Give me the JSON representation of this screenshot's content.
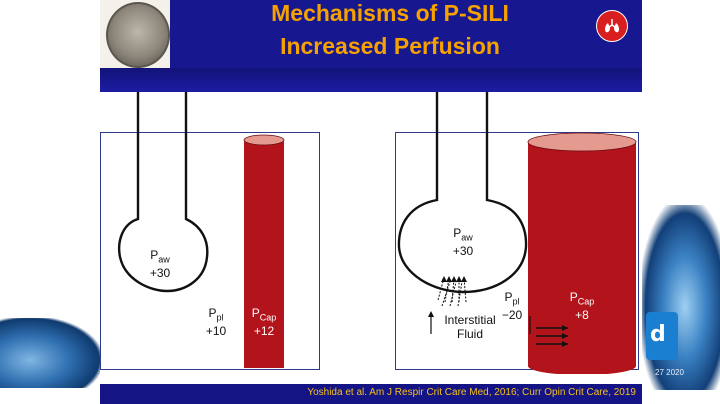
{
  "slide": {
    "title_line1": "Mechanisms of P-SILI",
    "title_line2": "Increased Perfusion",
    "citation": "Yoshida et al. Am J Respir Crit Care Med, 2016; Curr Opin Crit Care, 2019"
  },
  "left_panel": {
    "paw_main": "P",
    "paw_sub": "aw",
    "paw_value": "+30",
    "ppl_main": "P",
    "ppl_sub": "pl",
    "ppl_value": "+10",
    "pcap_main": "P",
    "pcap_sub": "Cap",
    "pcap_value": "+12"
  },
  "right_panel": {
    "paw_main": "P",
    "paw_sub": "aw",
    "paw_value": "+30",
    "ppl_main": "P",
    "ppl_sub": "pl",
    "ppl_value": "−20",
    "pcap_main": "P",
    "pcap_sub": "Cap",
    "pcap_value": "+8",
    "interstitial_line1": "Interstitial",
    "interstitial_line2": "Fluid"
  },
  "background": {
    "zoom_badge": "d",
    "corner_date": "27 2020"
  },
  "colors": {
    "title_bar": "#17178f",
    "title_text": "#f5a200",
    "citation_text": "#f5c21a",
    "capillary": "#b3141c",
    "capillary_top": "#e59a8f",
    "panel_border": "#2b3a8c"
  },
  "icons": {
    "logo": "university-seal-icon",
    "lung": "lungs-icon"
  }
}
